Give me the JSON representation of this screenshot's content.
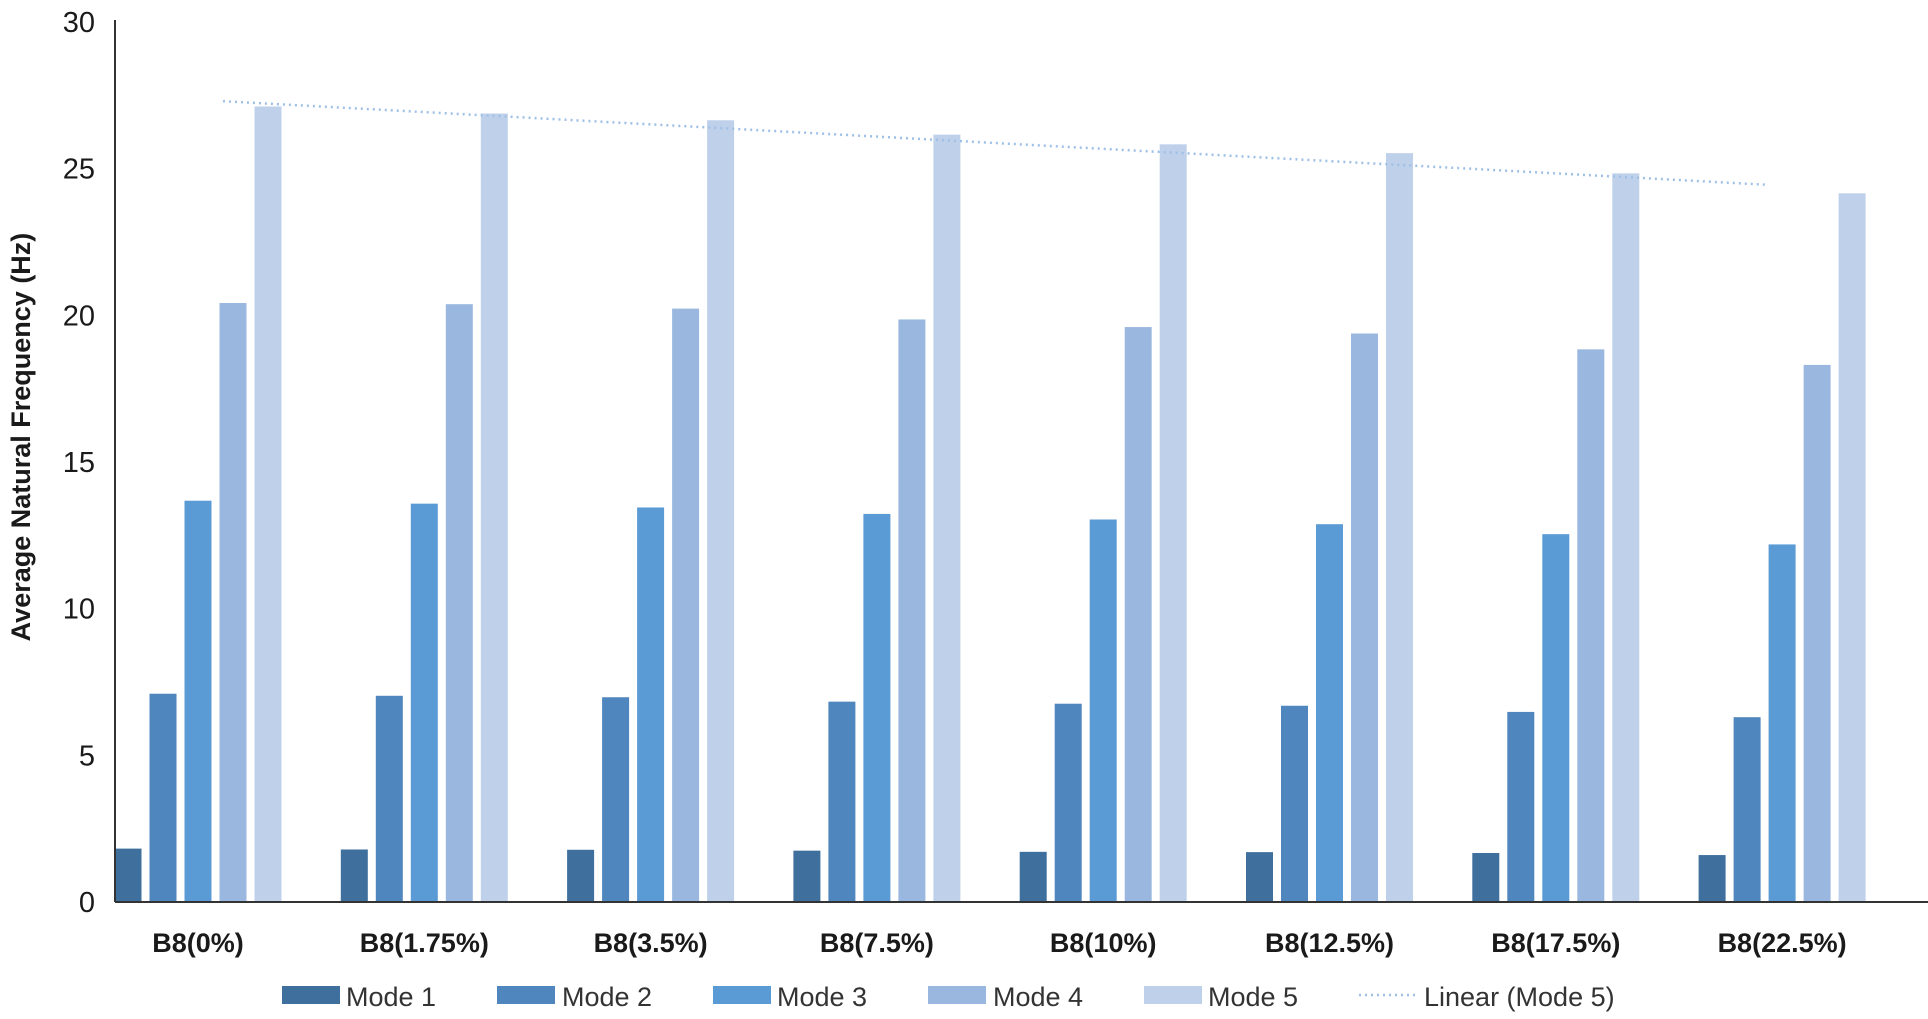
{
  "chart_data": {
    "type": "bar",
    "title": "",
    "xlabel": "",
    "ylabel": "Average Natural Frequency (Hz)",
    "ylim": [
      0,
      30
    ],
    "yticks": [
      0,
      5,
      10,
      15,
      20,
      25,
      30
    ],
    "grid": false,
    "legend_position": "bottom",
    "categories": [
      "B8(0%)",
      "B8(1.75%)",
      "B8(3.5%)",
      "B8(7.5%)",
      "B8(10%)",
      "B8(12.5%)",
      "B8(17.5%)",
      "B8(22.5%)"
    ],
    "series": [
      {
        "name": "Mode 1",
        "color": "#3f6f9c",
        "values": [
          1.82,
          1.79,
          1.78,
          1.75,
          1.71,
          1.7,
          1.67,
          1.6
        ]
      },
      {
        "name": "Mode 2",
        "color": "#4e86bd",
        "values": [
          7.1,
          7.03,
          6.98,
          6.83,
          6.76,
          6.69,
          6.48,
          6.3
        ]
      },
      {
        "name": "Mode 3",
        "color": "#5b9bd5",
        "values": [
          13.68,
          13.58,
          13.45,
          13.23,
          13.04,
          12.88,
          12.54,
          12.19
        ]
      },
      {
        "name": "Mode 4",
        "color": "#9ab8df",
        "values": [
          20.42,
          20.38,
          20.23,
          19.86,
          19.6,
          19.38,
          18.84,
          18.31
        ]
      },
      {
        "name": "Mode 5",
        "color": "#bfd1ea",
        "values": [
          27.12,
          26.88,
          26.65,
          26.16,
          25.83,
          25.53,
          24.84,
          24.16
        ]
      }
    ],
    "trendline": {
      "name": "Linear (Mode 5)",
      "color": "#9fc0e6",
      "style": "dotted",
      "start": {
        "category_index": 0,
        "value": 27.3
      },
      "end": {
        "category_index": 7,
        "value": 24.45
      }
    },
    "legend": [
      "Mode 1",
      "Mode 2",
      "Mode 3",
      "Mode 4",
      "Mode 5",
      "Linear (Mode 5)"
    ]
  }
}
